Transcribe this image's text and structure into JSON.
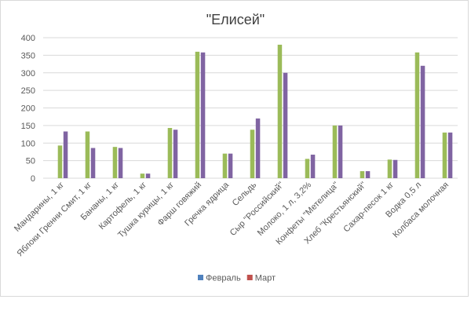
{
  "chart_data": {
    "type": "bar",
    "title": "\"Елисей\"",
    "xlabel": "",
    "ylabel": "",
    "ylim": [
      0,
      400
    ],
    "yticks": [
      0,
      50,
      100,
      150,
      200,
      250,
      300,
      350,
      400
    ],
    "grid": true,
    "legend_position": "bottom",
    "categories": [
      "Мандарины, 1 кг",
      "Яблоки Гренни Смит, 1 кг",
      "Бананы, 1 кг",
      "Картофель, 1 кг",
      "Тушка курицы, 1 кг",
      "Фарш говяжий",
      "Гречка ядрица",
      "Сельдь",
      "Сыр \"Российский\"",
      "Молоко, 1 л, 3,2%",
      "Конфеты \"Метелица\"",
      "Хлеб \"Крестьянский\"",
      "Сахар-песок 1 кг",
      "Водка 0,5 л",
      "Колбаса молочная"
    ],
    "series": [
      {
        "name": "Февраль",
        "bar_color": "#9bbb59",
        "legend_color": "#4f81bd",
        "values": [
          93,
          133,
          89,
          13,
          143,
          360,
          70,
          138,
          380,
          55,
          150,
          20,
          53,
          358,
          130
        ]
      },
      {
        "name": "Март",
        "bar_color": "#8064a2",
        "legend_color": "#c0504d",
        "values": [
          133,
          86,
          86,
          13,
          138,
          358,
          70,
          170,
          300,
          67,
          150,
          20,
          52,
          320,
          130
        ]
      }
    ]
  }
}
